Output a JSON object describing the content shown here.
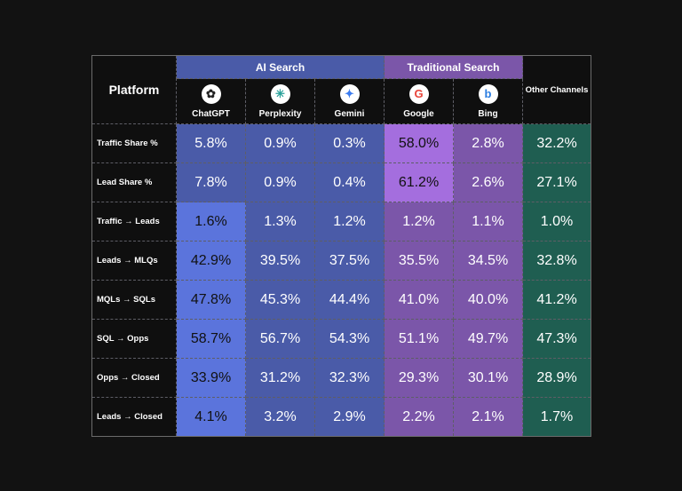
{
  "header": {
    "platform_label": "Platform",
    "groups": {
      "ai": "AI Search",
      "traditional": "Traditional Search",
      "other": "Other Channels"
    },
    "platforms": [
      {
        "name": "ChatGPT",
        "icon": "chatgpt-icon"
      },
      {
        "name": "Perplexity",
        "icon": "perplexity-icon"
      },
      {
        "name": "Gemini",
        "icon": "gemini-icon"
      },
      {
        "name": "Google",
        "icon": "google-icon"
      },
      {
        "name": "Bing",
        "icon": "bing-icon"
      }
    ]
  },
  "colors": {
    "ai": "#4a5ba8",
    "ai_highlight": "#5b74dc",
    "traditional": "#7b56a9",
    "traditional_highlight": "#a46ede",
    "other": "#1f5e51"
  },
  "rows": [
    {
      "label": "Traffic Share %",
      "values": [
        "5.8%",
        "0.9%",
        "0.3%",
        "58.0%",
        "2.8%",
        "32.2%"
      ]
    },
    {
      "label": "Lead Share %",
      "values": [
        "7.8%",
        "0.9%",
        "0.4%",
        "61.2%",
        "2.6%",
        "27.1%"
      ]
    },
    {
      "label": "Traffic → Leads",
      "values": [
        "1.6%",
        "1.3%",
        "1.2%",
        "1.2%",
        "1.1%",
        "1.0%"
      ]
    },
    {
      "label": "Leads → MLQs",
      "values": [
        "42.9%",
        "39.5%",
        "37.5%",
        "35.5%",
        "34.5%",
        "32.8%"
      ]
    },
    {
      "label": "MQLs → SQLs",
      "values": [
        "47.8%",
        "45.3%",
        "44.4%",
        "41.0%",
        "40.0%",
        "41.2%"
      ]
    },
    {
      "label": "SQL → Opps",
      "values": [
        "58.7%",
        "56.7%",
        "54.3%",
        "51.1%",
        "49.7%",
        "47.3%"
      ]
    },
    {
      "label": "Opps → Closed",
      "values": [
        "33.9%",
        "31.2%",
        "32.3%",
        "29.3%",
        "30.1%",
        "28.9%"
      ]
    },
    {
      "label": "Leads → Closed",
      "values": [
        "4.1%",
        "3.2%",
        "2.9%",
        "2.2%",
        "2.1%",
        "1.7%"
      ]
    }
  ]
}
